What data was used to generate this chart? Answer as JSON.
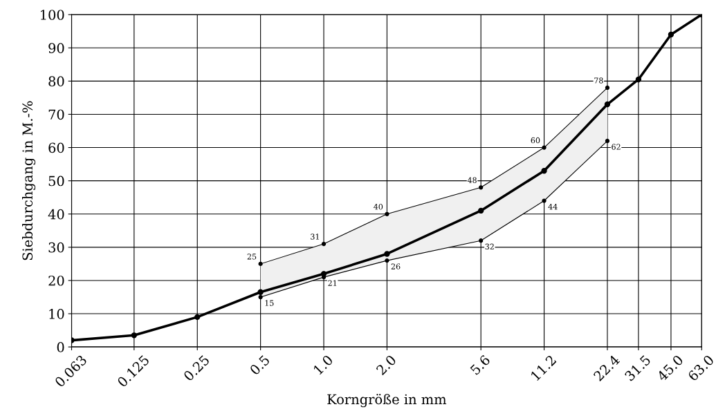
{
  "chart_data": {
    "type": "line",
    "xlabel": "Korngröße in mm",
    "ylabel": "Siebdurchgang in M.-%",
    "log": "x",
    "grid": true,
    "marker": "circle",
    "line_style": "solid",
    "x": [
      0.063,
      0.125,
      0.25,
      0.5,
      1.0,
      2.0,
      5.6,
      11.2,
      22.4,
      31.5,
      45.0,
      63.0
    ],
    "series": [
      {
        "color": "#000000",
        "values": [
          2,
          3.5,
          9,
          16.5,
          22,
          28,
          41,
          53,
          73,
          80.5,
          94,
          100
        ],
        "lower": [
          null,
          null,
          null,
          15,
          21,
          26,
          32,
          44,
          62,
          null,
          null,
          null
        ],
        "upper": [
          null,
          null,
          null,
          25,
          31,
          40,
          48,
          60,
          78,
          null,
          null,
          null
        ]
      },
      {
        "color": "#000000",
        "x": [
          0.5,
          1.0,
          2.0,
          5.6,
          11.2,
          22.4
        ],
        "values": [
          25,
          31,
          40,
          48,
          60,
          78
        ],
        "value_labels": [
          "25",
          "31",
          "40",
          "48",
          "60",
          "78"
        ]
      },
      {
        "color": "#000000",
        "x": [
          0.5,
          1.0,
          2.0,
          5.6,
          11.2,
          22.4
        ],
        "values": [
          15,
          21,
          26,
          32,
          44,
          62
        ],
        "value_labels": [
          "15",
          "21",
          "26",
          "32",
          "44",
          "62"
        ]
      }
    ],
    "xlim": [
      0.063,
      63.0
    ],
    "xticks": [
      0.063,
      0.125,
      0.25,
      0.5,
      {
        "value": 1.0,
        "label": "1.0"
      },
      {
        "value": 2.0,
        "label": "2.0"
      },
      5.6,
      11.2,
      22.4,
      31.5,
      {
        "value": 45.0,
        "label": "45.0"
      },
      {
        "value": 63.0,
        "label": "63.0"
      }
    ],
    "ylim": [
      0,
      100
    ],
    "yticks": [
      0,
      10,
      20,
      30,
      40,
      50,
      60,
      70,
      80,
      90,
      100
    ]
  }
}
